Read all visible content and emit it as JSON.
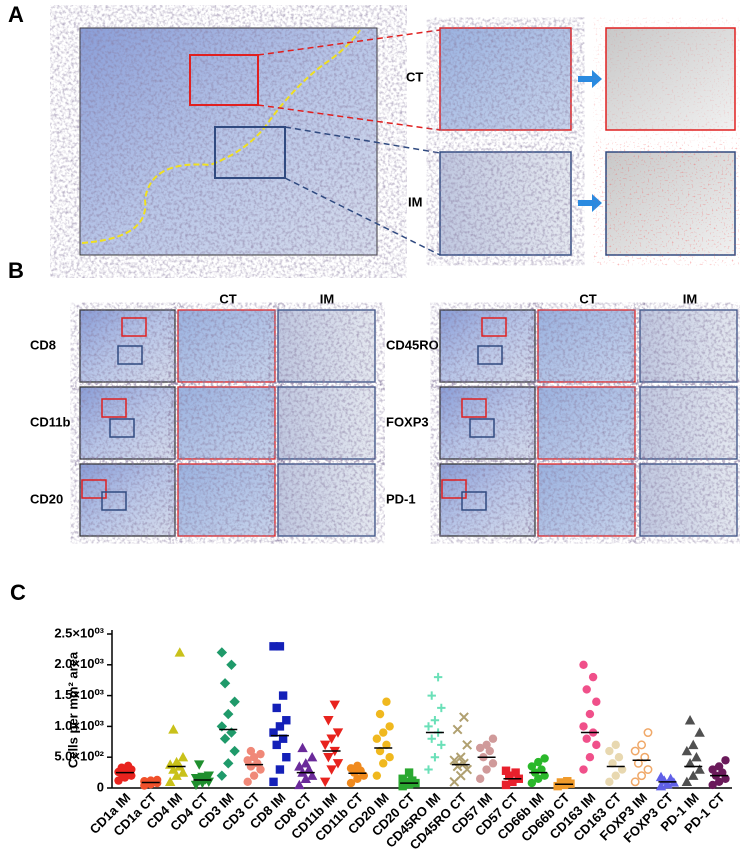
{
  "panel_a": {
    "letter": "A",
    "ct_label": "CT",
    "im_label": "IM"
  },
  "panel_b": {
    "letter": "B",
    "column_headers": [
      "CT",
      "IM",
      "CT",
      "IM"
    ],
    "rows": [
      "CD8",
      "CD11b",
      "CD20",
      "CD45RO",
      "FOXP3",
      "PD-1"
    ]
  },
  "panel_c": {
    "letter": "C"
  },
  "chart_data": {
    "type": "dotplot",
    "y_label": "Cells per mm² area",
    "categories": [
      "CD1a IM",
      "CD1a CT",
      "CD4 IM",
      "CD4 CT",
      "CD3 IM",
      "CD3 CT",
      "CD8 IM",
      "CD8 CT",
      "CD11b IM",
      "CD11b CT",
      "CD20 IM",
      "CD20 CT",
      "CD45RO IM",
      "CD45RO CT",
      "CD57 IM",
      "CD57 CT",
      "CD66b IM",
      "CD66b CT",
      "CD163 IM",
      "CD163 CT",
      "FOXP3 IM",
      "FOXP3 CT",
      "PD-1 IM",
      "PD-1 CT"
    ],
    "colors": [
      "#e8231e",
      "#f0502a",
      "#c9c11a",
      "#1f8f2e",
      "#1f9a6a",
      "#f08878",
      "#1420b8",
      "#6a2a9a",
      "#e8231e",
      "#f08a1e",
      "#f0b81e",
      "#2aa830",
      "#6ae0b8",
      "#b0a070",
      "#d09a9a",
      "#e8202c",
      "#2ab82a",
      "#f09a2a",
      "#f0508a",
      "#e8d8b0",
      "#f0a868",
      "#6060e8",
      "#505050",
      "#6a1a5a"
    ],
    "markers": [
      "circle",
      "circle",
      "triangle",
      "triangle-down",
      "diamond",
      "circle",
      "square",
      "triangle",
      "triangle-down",
      "circle",
      "circle",
      "square",
      "plus",
      "x",
      "circle",
      "square",
      "circle",
      "square",
      "circle",
      "circle",
      "circle-open",
      "triangle",
      "triangle",
      "circle"
    ],
    "points": [
      [
        120,
        170,
        200,
        230,
        250,
        260,
        280,
        300,
        330,
        360
      ],
      [
        40,
        60,
        80,
        90,
        100,
        110,
        120,
        130
      ],
      [
        100,
        200,
        250,
        300,
        350,
        380,
        420,
        500,
        950,
        2200
      ],
      [
        50,
        80,
        100,
        120,
        140,
        160,
        180,
        200,
        380
      ],
      [
        200,
        400,
        600,
        800,
        900,
        1000,
        1200,
        1400,
        1700,
        2000,
        2200
      ],
      [
        100,
        200,
        300,
        350,
        400,
        450,
        500,
        550,
        600
      ],
      [
        100,
        300,
        500,
        700,
        800,
        900,
        1000,
        1100,
        1300,
        1500,
        2300,
        2300
      ],
      [
        50,
        150,
        200,
        250,
        300,
        350,
        400,
        500,
        650
      ],
      [
        100,
        300,
        400,
        500,
        600,
        700,
        800,
        900,
        1100,
        1350
      ],
      [
        80,
        150,
        200,
        250,
        280,
        320,
        360
      ],
      [
        200,
        400,
        500,
        600,
        700,
        800,
        900,
        1000,
        1200,
        1400
      ],
      [
        30,
        60,
        80,
        100,
        120,
        150,
        250
      ],
      [
        300,
        500,
        700,
        800,
        900,
        1000,
        1100,
        1300,
        1500,
        1800
      ],
      [
        100,
        200,
        300,
        350,
        400,
        450,
        500,
        700,
        950,
        1150
      ],
      [
        150,
        300,
        400,
        500,
        600,
        650,
        700,
        800
      ],
      [
        50,
        100,
        150,
        200,
        250,
        280
      ],
      [
        80,
        150,
        200,
        250,
        300,
        350,
        420,
        480
      ],
      [
        30,
        50,
        70,
        90,
        110
      ],
      [
        300,
        500,
        700,
        800,
        900,
        1000,
        1200,
        1400,
        1600,
        1800,
        2000
      ],
      [
        100,
        200,
        300,
        400,
        500,
        600,
        700
      ],
      [
        100,
        200,
        300,
        400,
        500,
        600,
        700,
        900
      ],
      [
        30,
        60,
        90,
        120,
        150,
        180
      ],
      [
        100,
        200,
        300,
        400,
        500,
        600,
        700,
        900,
        1100
      ],
      [
        50,
        100,
        150,
        200,
        250,
        300,
        350,
        450
      ]
    ],
    "medians": [
      250,
      90,
      350,
      130,
      950,
      380,
      850,
      250,
      600,
      240,
      650,
      80,
      900,
      380,
      500,
      150,
      250,
      60,
      900,
      350,
      450,
      100,
      350,
      200
    ],
    "ylim": [
      0,
      2500
    ],
    "yticks": [
      0,
      {
        "value": 500,
        "label": "5.0×10⁰²"
      },
      {
        "value": 1000,
        "label": "1.0×10⁰³"
      },
      {
        "value": 1500,
        "label": "1.5×10⁰³"
      },
      {
        "value": 2000,
        "label": "2.0×10⁰³"
      },
      {
        "value": 2500,
        "label": "2.5×10⁰³"
      }
    ]
  }
}
